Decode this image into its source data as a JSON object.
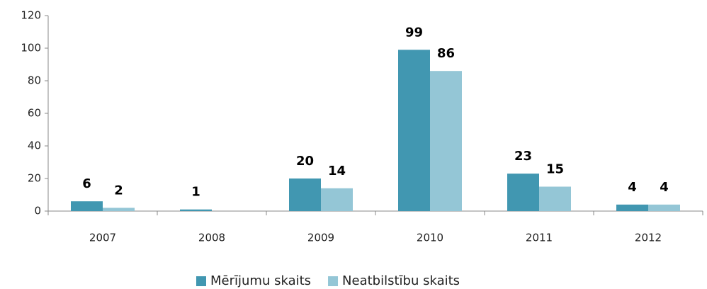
{
  "chart_data": {
    "type": "bar",
    "categories": [
      "2007",
      "2008",
      "2009",
      "2010",
      "2011",
      "2012"
    ],
    "series": [
      {
        "name": "Mērījumu skaits",
        "color": "#4197b1",
        "values": [
          6,
          1,
          20,
          99,
          23,
          4
        ]
      },
      {
        "name": "Neatbilstību skaits",
        "color": "#94c6d6",
        "values": [
          2,
          null,
          14,
          86,
          15,
          4
        ]
      }
    ],
    "ylim": [
      0,
      120
    ],
    "yticks": [
      0,
      20,
      40,
      60,
      80,
      100,
      120
    ],
    "grid": false,
    "legend": "bottom"
  }
}
